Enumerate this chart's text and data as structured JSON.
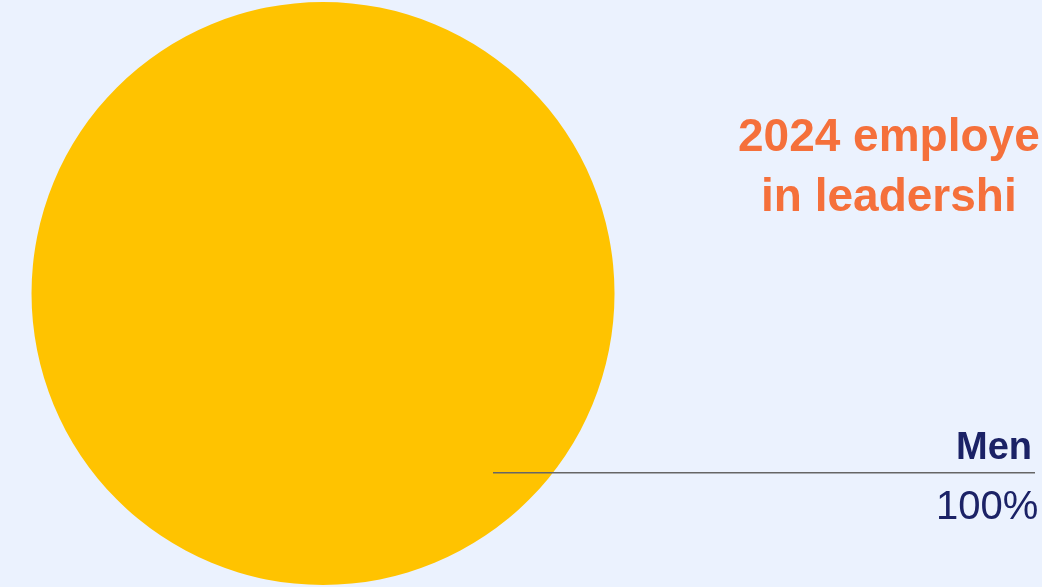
{
  "chart_data": {
    "type": "pie",
    "title": "2024 employe\nin leadershi",
    "categories": [
      "Men"
    ],
    "values": [
      100
    ],
    "colors": [
      "#ffc300"
    ],
    "value_labels": [
      "100%"
    ],
    "legend": false
  }
}
